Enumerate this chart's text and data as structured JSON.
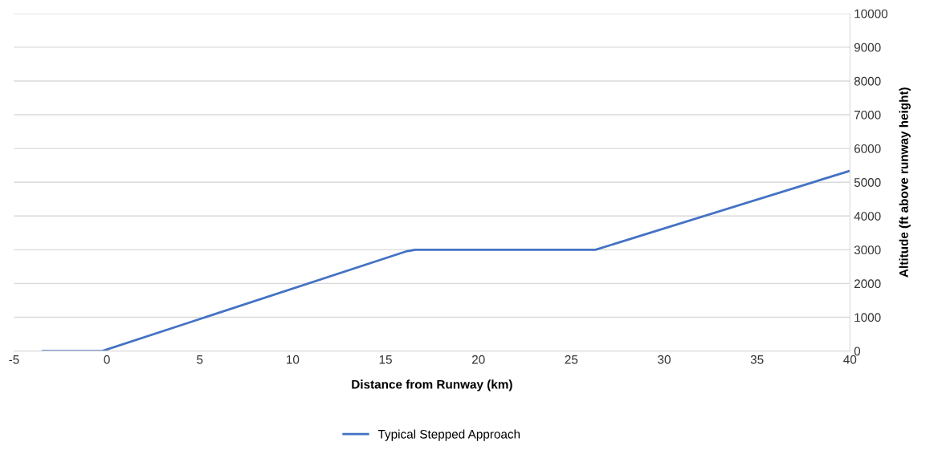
{
  "chart_data": {
    "type": "line",
    "xlabel": "Distance from Runway (km)",
    "ylabel": "Altitude (ft above runway height)",
    "series": [
      {
        "name": "Typical Stepped Approach",
        "color": "#4472c4",
        "x": [
          -3.45,
          -0.25,
          16.1,
          16.6,
          25.9,
          26.3,
          40
        ],
        "values": [
          0,
          0,
          2950,
          3000,
          3000,
          3000,
          5340
        ]
      }
    ],
    "xlim": [
      -5,
      40
    ],
    "xticks": [
      -5,
      0,
      5,
      10,
      15,
      20,
      25,
      30,
      35,
      40
    ],
    "ylim": [
      0,
      10000
    ],
    "yticks": [
      0,
      1000,
      2000,
      3000,
      4000,
      5000,
      6000,
      7000,
      8000,
      9000,
      10000
    ],
    "grid": "y",
    "legend": "bottom",
    "marker": "none",
    "line_style": "solid"
  }
}
